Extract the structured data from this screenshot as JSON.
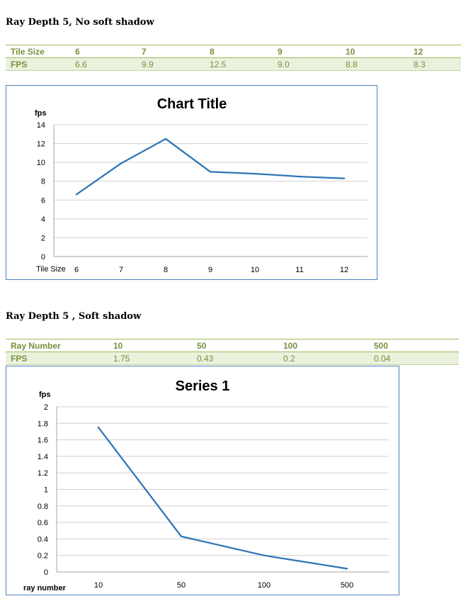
{
  "section1": {
    "heading": "Ray Depth 5, No soft shadow",
    "table": {
      "header": [
        "Tile Size",
        "6",
        "7",
        "8",
        "9",
        "10",
        "12"
      ],
      "row": [
        "FPS",
        "6.6",
        "9.9",
        "12.5",
        "9.0",
        "8.8",
        "8.3"
      ]
    }
  },
  "section2": {
    "heading": "Ray Depth 5 , Soft shadow",
    "table": {
      "header": [
        "Ray Number",
        "10",
        "50",
        "100",
        "500"
      ],
      "row": [
        "FPS",
        "1.75",
        "0.43",
        "0.2",
        "0.04"
      ]
    }
  },
  "chart_data": [
    {
      "type": "line",
      "title": "Chart Title",
      "xlabel": "Tile Size",
      "ylabel": "fps",
      "categories": [
        "6",
        "7",
        "8",
        "9",
        "10",
        "11",
        "12"
      ],
      "series": [
        {
          "values": [
            6.6,
            9.9,
            12.5,
            9.0,
            8.8,
            8.5,
            8.3
          ]
        }
      ],
      "ylim": [
        0,
        14
      ],
      "yticks": [
        0,
        2,
        4,
        6,
        8,
        10,
        12,
        14
      ],
      "ytick_labels": [
        "0",
        "2",
        "4",
        "6",
        "8",
        "10",
        "12",
        "14"
      ],
      "grid": true,
      "line_color": "#2e75b6"
    },
    {
      "type": "line",
      "title": "Series 1",
      "xlabel": "ray number",
      "ylabel": "fps",
      "categories": [
        "10",
        "50",
        "100",
        "500"
      ],
      "series": [
        {
          "values": [
            1.75,
            0.43,
            0.2,
            0.04
          ]
        }
      ],
      "ylim": [
        0,
        2
      ],
      "yticks": [
        0,
        0.2,
        0.4,
        0.6,
        0.8,
        1,
        1.2,
        1.4,
        1.6,
        1.8,
        2
      ],
      "ytick_labels": [
        "0",
        "0.2",
        "0.4",
        "0.6",
        "0.8",
        "1",
        "1.2",
        "1.4",
        "1.6",
        "1.8",
        "2"
      ],
      "grid": true,
      "line_color": "#2e75b6"
    }
  ]
}
